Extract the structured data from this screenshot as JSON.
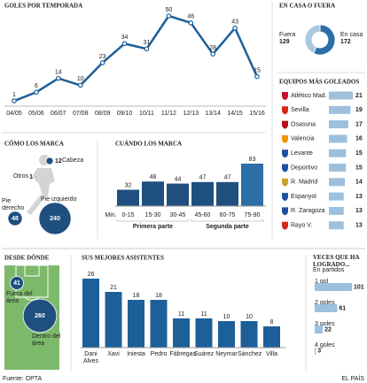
{
  "chart_data": [
    {
      "type": "line",
      "title": "GOLES POR TEMPORADA",
      "categories": [
        "04/05",
        "05/06",
        "06/07",
        "07/08",
        "08/09",
        "09/10",
        "10/11",
        "11/12",
        "12/13",
        "13/14",
        "14/15",
        "15/16"
      ],
      "values": [
        1,
        6,
        14,
        10,
        23,
        34,
        31,
        50,
        46,
        28,
        43,
        15
      ],
      "color": "#1d5f99"
    },
    {
      "type": "donut",
      "title": "EN CASA O FUERA",
      "categories": [
        "Fuera",
        "En casa"
      ],
      "values": [
        129,
        172
      ],
      "colors": [
        "#a9c9e2",
        "#2c6ea6"
      ]
    },
    {
      "type": "hbar",
      "title": "EQUIPOS MÁS GOLEADOS",
      "categories": [
        "Atlético Mad.",
        "Sevilla",
        "Osasuna",
        "Valencia",
        "Levante",
        "Deportivo",
        "R. Madrid",
        "Espanyol",
        "R. Zaragoza",
        "Rayo V."
      ],
      "values": [
        21,
        19,
        17,
        16,
        15,
        15,
        14,
        13,
        13,
        13
      ],
      "color": "#9cc0de"
    },
    {
      "type": "bubble",
      "title": "CÓMO LOS MARCA",
      "categories": [
        "Cabeza",
        "Otros",
        "Pie derecho",
        "Pie izquierdo"
      ],
      "values": [
        12,
        1,
        48,
        240
      ],
      "color": "#1f4f7f"
    },
    {
      "type": "bar",
      "title": "CUÁNDO LOS MARCA",
      "axis_label": "Min.",
      "categories": [
        "0-15",
        "15-30",
        "30-45",
        "45-60",
        "60-75",
        "75-90"
      ],
      "values": [
        32,
        48,
        44,
        47,
        47,
        83
      ],
      "colors": [
        "#1f4f7f",
        "#1f4f7f",
        "#1f4f7f",
        "#1f4f7f",
        "#1f4f7f",
        "#2c6ea6"
      ],
      "groups": [
        "Primera parte",
        "Segunda parte"
      ]
    },
    {
      "type": "bubble",
      "title": "DESDE DÓNDE",
      "categories": [
        "Fuera del área",
        "Dentro del área"
      ],
      "values": [
        41,
        260
      ],
      "color": "#1f4f7f"
    },
    {
      "type": "bar",
      "title": "SUS MEJORES ASISTENTES",
      "categories": [
        "Dani Alves",
        "Xavi",
        "Iniesta",
        "Pedro",
        "Fàbregas",
        "Suárez",
        "Neymar",
        "Sánchez",
        "Villa"
      ],
      "values": [
        26,
        21,
        18,
        18,
        11,
        11,
        10,
        10,
        8
      ],
      "colors": [
        "#1d5f99",
        "#1d5f99",
        "#1d5f99",
        "#1d5f99",
        "#1d5f99",
        "#1d5f99",
        "#1d5f99",
        "#1d5f99",
        "#1d5f99"
      ]
    },
    {
      "type": "hbar",
      "title": "VECES QUE HA LOGRADO...",
      "subtitle": "En partidos",
      "categories": [
        "1 gol",
        "2 goles",
        "3 goles",
        "4 goles"
      ],
      "values": [
        101,
        61,
        22,
        3
      ],
      "color": "#9cc0de"
    }
  ],
  "source": "Fuente: OPTA",
  "publisher": "EL PAÍS"
}
